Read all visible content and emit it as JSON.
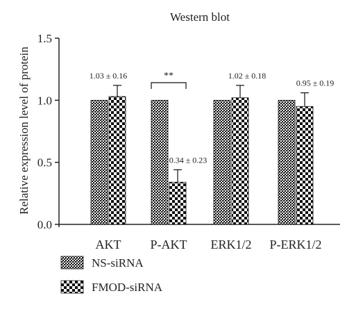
{
  "chart_data": {
    "type": "bar",
    "title": "Western blot",
    "xlabel": "",
    "ylabel": "Relative expression level of protein",
    "ylim": [
      0,
      1.5
    ],
    "yticks": [
      "0.0",
      "0.5",
      "1.0",
      "1.5"
    ],
    "categories": [
      "AKT",
      "P-AKT",
      "ERK1/2",
      "P-ERK1/2"
    ],
    "series": [
      {
        "name": "NS-siRNA",
        "pattern": "diagonal-hatch",
        "values": [
          1.0,
          1.0,
          1.0,
          1.0
        ],
        "errors": [
          0,
          0,
          0,
          0
        ]
      },
      {
        "name": "FMOD-siRNA",
        "pattern": "checkerboard",
        "values": [
          1.03,
          0.34,
          1.02,
          0.95
        ],
        "errors": [
          0.09,
          0.1,
          0.1,
          0.11
        ]
      }
    ],
    "value_labels": [
      "1.03 ± 0.16",
      "0.34 ± 0.23",
      "1.02 ± 0.18",
      "0.95 ± 0.19"
    ],
    "significance": {
      "category_index": 1,
      "label": "**"
    },
    "grid": false,
    "legend_position": "bottom-left",
    "colors": {
      "axis": "#222222",
      "bar_fill": "#000000",
      "bar_bg": "#ffffff"
    }
  }
}
